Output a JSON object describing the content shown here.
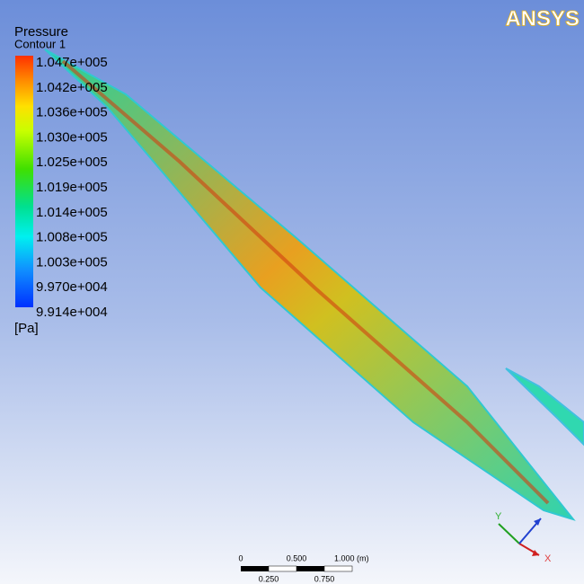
{
  "legend": {
    "title": "Pressure",
    "subtitle": "Contour 1",
    "labels": [
      "1.047e+005",
      "1.042e+005",
      "1.036e+005",
      "1.030e+005",
      "1.025e+005",
      "1.019e+005",
      "1.014e+005",
      "1.008e+005",
      "1.003e+005",
      "9.970e+004",
      "9.914e+004"
    ],
    "unit": "[Pa]"
  },
  "logo": "ANSYS",
  "scale_bar": {
    "top_labels": [
      "0",
      "0.500",
      "1.000 (m)"
    ],
    "bottom_labels": [
      "0.250",
      "0.750"
    ]
  },
  "triad": {
    "y": "Y",
    "x": "X"
  }
}
